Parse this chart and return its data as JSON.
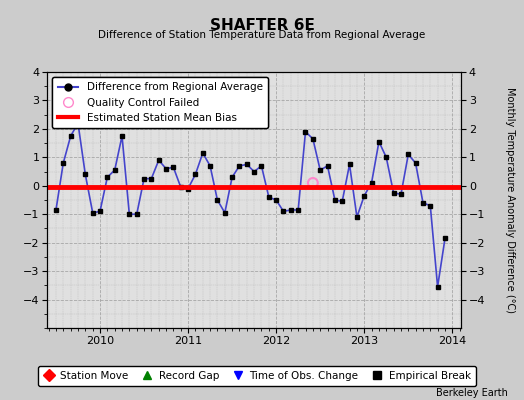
{
  "title": "SHAFTER 6E",
  "subtitle": "Difference of Station Temperature Data from Regional Average",
  "ylabel_right": "Monthly Temperature Anomaly Difference (°C)",
  "credit": "Berkeley Earth",
  "ylim": [
    -5,
    4
  ],
  "yticks": [
    -4,
    -3,
    -2,
    -1,
    0,
    1,
    2,
    3,
    4
  ],
  "xlim_start": 2009.4,
  "xlim_end": 2014.1,
  "mean_bias": -0.05,
  "bg_color": "#cccccc",
  "plot_bg": "#e0e0e0",
  "line_color": "#4444cc",
  "marker_color": "black",
  "bias_color": "red",
  "qc_fail_color": "#ff88cc",
  "x_values": [
    2009.5,
    2009.583,
    2009.667,
    2009.75,
    2009.833,
    2009.917,
    2010.0,
    2010.083,
    2010.167,
    2010.25,
    2010.333,
    2010.417,
    2010.5,
    2010.583,
    2010.667,
    2010.75,
    2010.833,
    2010.917,
    2011.0,
    2011.083,
    2011.167,
    2011.25,
    2011.333,
    2011.417,
    2011.5,
    2011.583,
    2011.667,
    2011.75,
    2011.833,
    2011.917,
    2012.0,
    2012.083,
    2012.167,
    2012.25,
    2012.333,
    2012.417,
    2012.5,
    2012.583,
    2012.667,
    2012.75,
    2012.833,
    2012.917,
    2013.0,
    2013.083,
    2013.167,
    2013.25,
    2013.333,
    2013.417,
    2013.5,
    2013.583,
    2013.667,
    2013.75,
    2013.833,
    2013.917
  ],
  "y_values": [
    -0.85,
    0.8,
    1.75,
    2.2,
    0.4,
    -0.95,
    -0.9,
    0.3,
    0.55,
    1.75,
    -1.0,
    -1.0,
    0.25,
    0.25,
    0.9,
    0.6,
    0.65,
    -0.05,
    -0.1,
    0.4,
    1.15,
    0.7,
    -0.5,
    -0.95,
    0.3,
    0.7,
    0.75,
    0.5,
    0.7,
    -0.4,
    -0.5,
    -0.9,
    -0.85,
    -0.85,
    1.9,
    1.65,
    0.55,
    0.7,
    -0.5,
    -0.55,
    0.75,
    -1.1,
    -0.35,
    0.1,
    1.55,
    1.0,
    -0.25,
    -0.3,
    1.1,
    0.8,
    -0.6,
    -0.7,
    -3.55,
    -1.85
  ],
  "qc_fail_x": [
    2012.417
  ],
  "qc_fail_y": [
    0.1
  ],
  "bottom_legend": [
    {
      "label": "Station Move",
      "color": "red",
      "marker": "D",
      "mfc": "red"
    },
    {
      "label": "Record Gap",
      "color": "green",
      "marker": "^",
      "mfc": "green"
    },
    {
      "label": "Time of Obs. Change",
      "color": "blue",
      "marker": "v",
      "mfc": "blue"
    },
    {
      "label": "Empirical Break",
      "color": "black",
      "marker": "s",
      "mfc": "black"
    }
  ]
}
